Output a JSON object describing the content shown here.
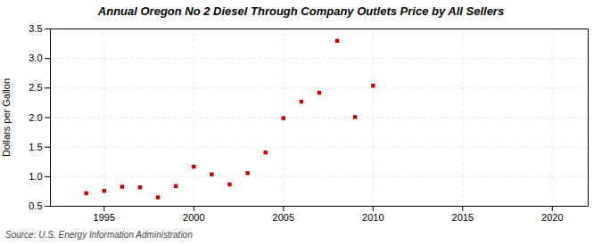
{
  "chart_data": {
    "type": "scatter",
    "title": "Annual Oregon No 2 Diesel Through Company Outlets Price by All Sellers",
    "ylabel": "Dollars per Gallon",
    "annotations": [
      "Source: U.S. Energy Information Administration"
    ],
    "x": [
      1994,
      1995,
      1996,
      1997,
      1998,
      1999,
      2000,
      2001,
      2002,
      2003,
      2004,
      2005,
      2006,
      2007,
      2008,
      2009,
      2010
    ],
    "values": [
      0.72,
      0.76,
      0.83,
      0.82,
      0.65,
      0.84,
      1.17,
      1.04,
      0.87,
      1.06,
      1.41,
      1.99,
      2.27,
      2.42,
      3.3,
      2.01,
      2.54
    ],
    "color": "#cc0000",
    "marker": "square",
    "xlim": [
      1992,
      2022
    ],
    "ylim": [
      0.5,
      3.5
    ],
    "xticks": [
      1995,
      2000,
      2005,
      2010,
      2015,
      2020
    ],
    "yticks": [
      0.5,
      {
        "value": 1,
        "label": "1.0"
      },
      1.5,
      {
        "value": 2,
        "label": "2.0"
      },
      2.5,
      {
        "value": 3,
        "label": "3.0"
      },
      3.5
    ],
    "grid": true
  }
}
